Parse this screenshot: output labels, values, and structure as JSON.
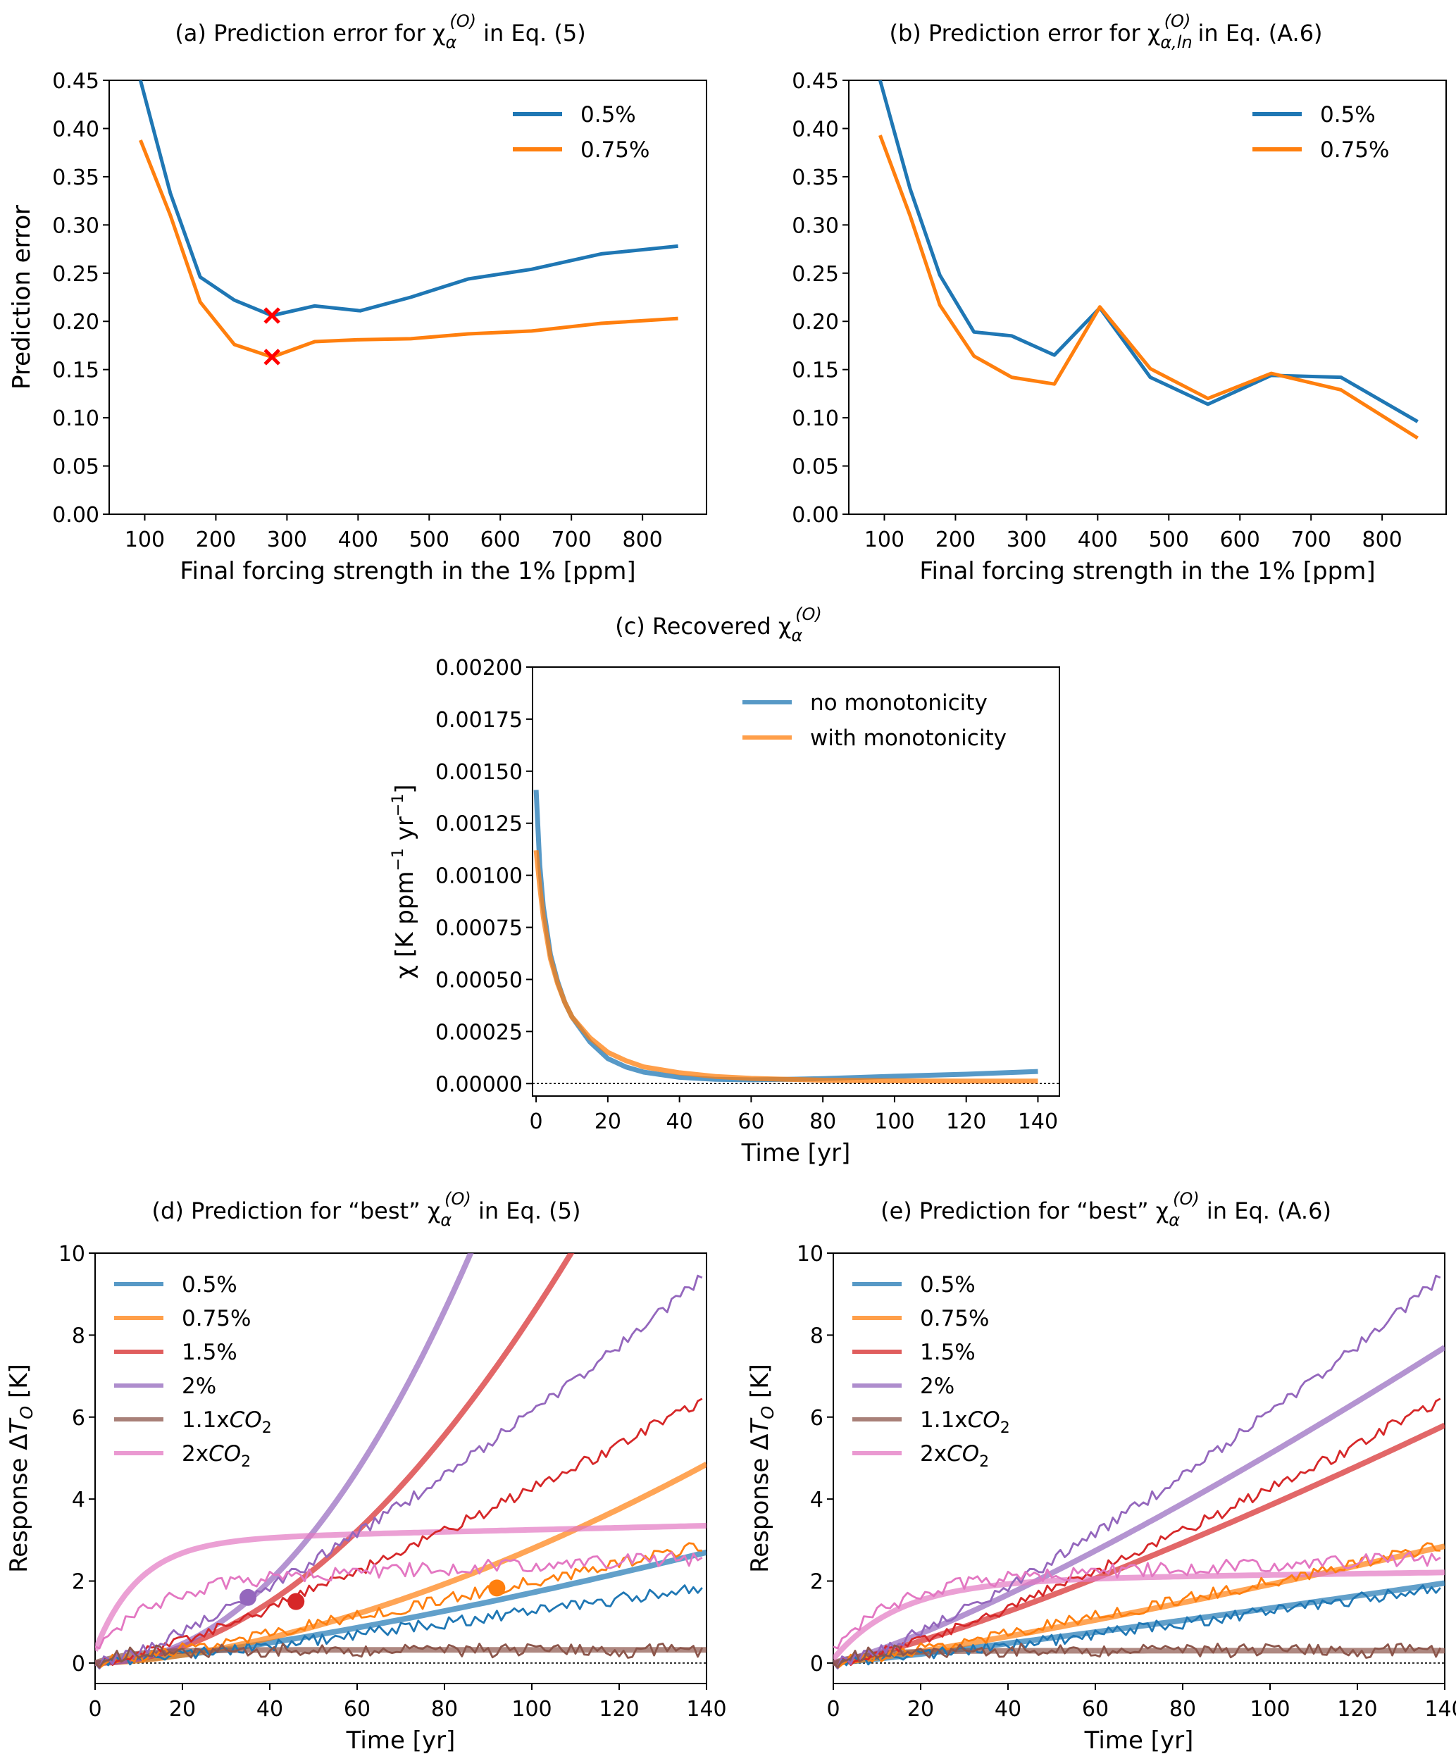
{
  "chart_data": [
    {
      "id": "a",
      "type": "line",
      "title": "(a)   Prediction error for χα(O) in Eq. (5)",
      "title_parts": {
        "prefix": "(a)   Prediction error for ",
        "symbol": "χ",
        "sup": "(O)",
        "sub": "α",
        "suffix": " in Eq. (5)"
      },
      "xlabel": "Final forcing strength in the 1% [ppm]",
      "ylabel": "Prediction error",
      "xlim": [
        50,
        890
      ],
      "ylim": [
        0,
        0.45
      ],
      "xticks": [
        100,
        200,
        300,
        400,
        500,
        600,
        700,
        800
      ],
      "yticks": [
        0.0,
        0.05,
        0.1,
        0.15,
        0.2,
        0.25,
        0.3,
        0.35,
        0.4,
        0.45
      ],
      "ytick_labels": [
        "0.00",
        "0.05",
        "0.10",
        "0.15",
        "0.20",
        "0.25",
        "0.30",
        "0.35",
        "0.40",
        "0.45"
      ],
      "legend_position": "top-right",
      "series": [
        {
          "name": "0.5%",
          "color": "#1f77b4",
          "x": [
            94,
            136,
            178,
            226,
            279,
            339,
            403,
            474,
            555,
            644,
            742,
            850
          ],
          "y": [
            0.45,
            0.333,
            0.246,
            0.222,
            0.206,
            0.216,
            0.211,
            0.225,
            0.244,
            0.254,
            0.27,
            0.278
          ]
        },
        {
          "name": "0.75%",
          "color": "#ff7f0e",
          "x": [
            94,
            136,
            178,
            226,
            279,
            339,
            403,
            474,
            555,
            644,
            742,
            850
          ],
          "y": [
            0.388,
            0.31,
            0.22,
            0.176,
            0.163,
            0.179,
            0.181,
            0.182,
            0.187,
            0.19,
            0.198,
            0.203
          ]
        }
      ],
      "markers": [
        {
          "label": "minimum 0.5%",
          "x": 279,
          "y": 0.206,
          "color": "#ff0000",
          "shape": "x"
        },
        {
          "label": "minimum 0.75%",
          "x": 279,
          "y": 0.163,
          "color": "#ff0000",
          "shape": "x"
        }
      ]
    },
    {
      "id": "b",
      "type": "line",
      "title": "(b)   Prediction error for χα,ln(O) in Eq. (A.6)",
      "title_parts": {
        "prefix": "(b)   Prediction error for ",
        "symbol": "χ",
        "sup": "(O)",
        "sub": "α,ln",
        "suffix": " in Eq. (A.6)"
      },
      "xlabel": "Final forcing strength in the 1% [ppm]",
      "ylabel": "Prediction error",
      "xlim": [
        50,
        890
      ],
      "ylim": [
        0,
        0.45
      ],
      "xticks": [
        100,
        200,
        300,
        400,
        500,
        600,
        700,
        800
      ],
      "yticks": [
        0.0,
        0.05,
        0.1,
        0.15,
        0.2,
        0.25,
        0.3,
        0.35,
        0.4,
        0.45
      ],
      "ytick_labels": [
        "0.00",
        "0.05",
        "0.10",
        "0.15",
        "0.20",
        "0.25",
        "0.30",
        "0.35",
        "0.40",
        "0.45"
      ],
      "legend_position": "top-right",
      "series": [
        {
          "name": "0.5%",
          "color": "#1f77b4",
          "x": [
            94,
            136,
            178,
            226,
            279,
            339,
            403,
            474,
            555,
            644,
            742,
            850
          ],
          "y": [
            0.45,
            0.338,
            0.248,
            0.189,
            0.185,
            0.165,
            0.214,
            0.142,
            0.114,
            0.144,
            0.142,
            0.096
          ]
        },
        {
          "name": "0.75%",
          "color": "#ff7f0e",
          "x": [
            94,
            136,
            178,
            226,
            279,
            339,
            403,
            474,
            555,
            644,
            742,
            850
          ],
          "y": [
            0.393,
            0.31,
            0.217,
            0.164,
            0.142,
            0.135,
            0.215,
            0.151,
            0.12,
            0.146,
            0.129,
            0.079
          ]
        }
      ]
    },
    {
      "id": "c",
      "type": "line",
      "title": "(c)   Recovered χα(O)",
      "title_parts": {
        "prefix": "(c)   Recovered ",
        "symbol": "χ",
        "sup": "(O)",
        "sub": "α",
        "suffix": ""
      },
      "xlabel": "Time [yr]",
      "ylabel": "χ [K ppm⁻¹ yr⁻¹]",
      "ylabel_parts": {
        "a": "χ [K ppm",
        "sup1": "−1",
        "b": " yr",
        "sup2": "−1",
        "c": "]"
      },
      "xlim": [
        -1,
        146
      ],
      "ylim": [
        -6e-05,
        0.002
      ],
      "xticks": [
        0,
        20,
        40,
        60,
        80,
        100,
        120,
        140
      ],
      "yticks": [
        0,
        0.00025,
        0.0005,
        0.00075,
        0.001,
        0.00125,
        0.0015,
        0.00175,
        0.002
      ],
      "ytick_labels": [
        "0.00000",
        "0.00025",
        "0.00050",
        "0.00075",
        "0.00100",
        "0.00125",
        "0.00150",
        "0.00175",
        "0.00200"
      ],
      "reference_line": {
        "y": 0,
        "style": "dotted"
      },
      "legend_position": "top-right",
      "series": [
        {
          "name": "no monotonicity",
          "color": "#1f77b4",
          "x": [
            0,
            1,
            2,
            4,
            6,
            8,
            10,
            15,
            20,
            25,
            30,
            40,
            50,
            60,
            70,
            80,
            100,
            120,
            140
          ],
          "y": [
            0.00141,
            0.00105,
            0.00085,
            0.00062,
            0.00049,
            0.00039,
            0.00032,
            0.0002,
            0.00012,
            8e-05,
            5.5e-05,
            3e-05,
            2e-05,
            1.8e-05,
            2e-05,
            2.4e-05,
            3.5e-05,
            4.5e-05,
            5.8e-05
          ]
        },
        {
          "name": "with monotonicity",
          "color": "#ff7f0e",
          "x": [
            0,
            1,
            2,
            4,
            6,
            8,
            10,
            15,
            20,
            25,
            30,
            40,
            50,
            60,
            70,
            80,
            100,
            120,
            140
          ],
          "y": [
            0.00112,
            0.00095,
            0.0008,
            0.0006,
            0.00048,
            0.00039,
            0.00032,
            0.00022,
            0.00015,
            0.00011,
            8e-05,
            5.2e-05,
            3.4e-05,
            2.5e-05,
            2e-05,
            1.6e-05,
            1.3e-05,
            1.2e-05,
            1.2e-05
          ]
        }
      ]
    },
    {
      "id": "d",
      "type": "line",
      "title": "(d)   Prediction for “best” χα(O) in Eq. (5)",
      "title_parts": {
        "prefix": "(d)   Prediction for “best” ",
        "symbol": "χ",
        "sup": "(O)",
        "sub": "α",
        "suffix": " in Eq. (5)"
      },
      "xlabel": "Time [yr]",
      "ylabel": "Response ΔT_O [K]",
      "ylabel_parts": {
        "a": "Response Δ",
        "italic": "T",
        "sub": "O",
        "b": " [K]"
      },
      "xlim": [
        0,
        140
      ],
      "ylim": [
        -0.5,
        10
      ],
      "xticks": [
        0,
        20,
        40,
        60,
        80,
        100,
        120,
        140
      ],
      "yticks": [
        0,
        2,
        4,
        6,
        8,
        10
      ],
      "ytick_labels": [
        "0",
        "2",
        "4",
        "6",
        "8",
        "10"
      ],
      "reference_line": {
        "y": 0,
        "style": "dotted"
      },
      "legend_position": "top-left",
      "series": [
        {
          "name": "0.5%",
          "color": "#1f77b4",
          "final_value_prediction": 2.7,
          "final_value_observed": 1.9,
          "kind": "ramp",
          "rate": 0.005
        },
        {
          "name": "0.75%",
          "color": "#ff7f0e",
          "final_value_prediction": 4.85,
          "final_value_observed": 2.85,
          "kind": "ramp",
          "rate": 0.0075
        },
        {
          "name": "1.5%",
          "color": "#d62728",
          "prediction_reaches_10_at": 109,
          "final_value_observed": 6.45,
          "kind": "ramp",
          "rate": 0.015
        },
        {
          "name": "2%",
          "color": "#9467bd",
          "prediction_reaches_10_at": 86,
          "final_value_observed": 9.45,
          "kind": "ramp",
          "rate": 0.02
        },
        {
          "name": "1.1xCO2",
          "color": "#8c564b",
          "final_value_prediction": 0.32,
          "final_value_observed": 0.32,
          "kind": "step"
        },
        {
          "name": "2xCO2",
          "color": "#e377c2",
          "final_value_prediction": 3.33,
          "final_value_observed": 2.0,
          "kind": "step"
        }
      ],
      "legend_labels": [
        {
          "text": "0.5%",
          "sub": ""
        },
        {
          "text": "0.75%",
          "sub": ""
        },
        {
          "text": "1.5%",
          "sub": ""
        },
        {
          "text": "2%",
          "sub": ""
        },
        {
          "text": "1.1x",
          "italic": "CO",
          "sub": "2"
        },
        {
          "text": "2x",
          "italic": "CO",
          "sub": "2"
        }
      ],
      "markers": [
        {
          "series": "2%",
          "x": 35,
          "y": 1.6,
          "color": "#9467bd",
          "shape": "circle"
        },
        {
          "series": "1.5%",
          "x": 46,
          "y": 1.5,
          "color": "#d62728",
          "shape": "circle"
        },
        {
          "series": "0.75%",
          "x": 92,
          "y": 1.83,
          "color": "#ff7f0e",
          "shape": "circle"
        }
      ]
    },
    {
      "id": "e",
      "type": "line",
      "title": "(e)   Prediction for “best” χα(O) in Eq. (A.6)",
      "title_parts": {
        "prefix": "(e)   Prediction for “best” ",
        "symbol": "χ",
        "sup": "(O)",
        "sub": "α",
        "suffix": " in Eq. (A.6)"
      },
      "xlabel": "Time [yr]",
      "ylabel": "Response ΔT_O [K]",
      "ylabel_parts": {
        "a": "Response Δ",
        "italic": "T",
        "sub": "O",
        "b": " [K]"
      },
      "xlim": [
        0,
        140
      ],
      "ylim": [
        -0.5,
        10
      ],
      "xticks": [
        0,
        20,
        40,
        60,
        80,
        100,
        120,
        140
      ],
      "yticks": [
        0,
        2,
        4,
        6,
        8,
        10
      ],
      "ytick_labels": [
        "0",
        "2",
        "4",
        "6",
        "8",
        "10"
      ],
      "reference_line": {
        "y": 0,
        "style": "dotted"
      },
      "legend_position": "top-left",
      "series": [
        {
          "name": "0.5%",
          "color": "#1f77b4",
          "final_value_prediction": 1.95,
          "final_value_observed": 1.9,
          "kind": "ramp"
        },
        {
          "name": "0.75%",
          "color": "#ff7f0e",
          "final_value_prediction": 2.85,
          "final_value_observed": 2.85,
          "kind": "ramp"
        },
        {
          "name": "1.5%",
          "color": "#d62728",
          "final_value_prediction": 5.8,
          "final_value_observed": 6.45,
          "kind": "ramp"
        },
        {
          "name": "2%",
          "color": "#9467bd",
          "final_value_prediction": 7.7,
          "final_value_observed": 9.45,
          "kind": "ramp"
        },
        {
          "name": "1.1xCO2",
          "color": "#8c564b",
          "final_value_prediction": 0.3,
          "final_value_observed": 0.32,
          "kind": "step"
        },
        {
          "name": "2xCO2",
          "color": "#e377c2",
          "final_value_prediction": 2.3,
          "final_value_observed": 2.0,
          "kind": "step"
        }
      ],
      "legend_labels": [
        {
          "text": "0.5%",
          "sub": ""
        },
        {
          "text": "0.75%",
          "sub": ""
        },
        {
          "text": "1.5%",
          "sub": ""
        },
        {
          "text": "2%",
          "sub": ""
        },
        {
          "text": "1.1x",
          "italic": "CO",
          "sub": "2"
        },
        {
          "text": "2x",
          "italic": "CO",
          "sub": "2"
        }
      ]
    }
  ]
}
